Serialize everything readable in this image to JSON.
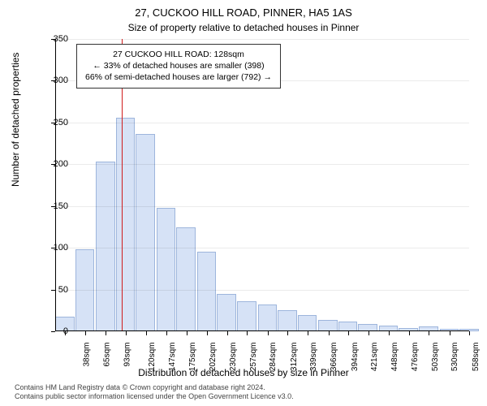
{
  "title_line1": "27, CUCKOO HILL ROAD, PINNER, HA5 1AS",
  "title_line2": "Size of property relative to detached houses in Pinner",
  "ylabel": "Number of detached properties",
  "xlabel": "Distribution of detached houses by size in Pinner",
  "annotation": {
    "line1": "27 CUCKOO HILL ROAD: 128sqm",
    "line2": "← 33% of detached houses are smaller (398)",
    "line3": "66% of semi-detached houses are larger (792) →"
  },
  "footer_line1": "Contains HM Land Registry data © Crown copyright and database right 2024.",
  "footer_line2": "Contains public sector information licensed under the Open Government Licence v3.0.",
  "chart": {
    "type": "histogram",
    "ylim": [
      0,
      350
    ],
    "ytick_step": 50,
    "yticks": [
      0,
      50,
      100,
      150,
      200,
      250,
      300,
      350
    ],
    "xlim_sqm": [
      38,
      598
    ],
    "xticks_sqm": [
      38,
      65,
      93,
      120,
      147,
      175,
      202,
      230,
      257,
      284,
      312,
      339,
      366,
      394,
      421,
      448,
      476,
      503,
      530,
      558,
      585
    ],
    "bar_fill": "#d6e2f6",
    "bar_border": "#9db5dc",
    "background_color": "#ffffff",
    "marker_color": "#d01c1c",
    "marker_sqm": 128,
    "label_fontsize": 12,
    "tick_fontsize": 11,
    "bars": [
      {
        "x_sqm": 38,
        "count": 18
      },
      {
        "x_sqm": 65,
        "count": 98
      },
      {
        "x_sqm": 93,
        "count": 203
      },
      {
        "x_sqm": 120,
        "count": 256
      },
      {
        "x_sqm": 147,
        "count": 236
      },
      {
        "x_sqm": 175,
        "count": 148
      },
      {
        "x_sqm": 202,
        "count": 124
      },
      {
        "x_sqm": 230,
        "count": 95
      },
      {
        "x_sqm": 257,
        "count": 45
      },
      {
        "x_sqm": 284,
        "count": 36
      },
      {
        "x_sqm": 312,
        "count": 32
      },
      {
        "x_sqm": 339,
        "count": 25
      },
      {
        "x_sqm": 366,
        "count": 19
      },
      {
        "x_sqm": 394,
        "count": 14
      },
      {
        "x_sqm": 421,
        "count": 12
      },
      {
        "x_sqm": 448,
        "count": 9
      },
      {
        "x_sqm": 476,
        "count": 7
      },
      {
        "x_sqm": 503,
        "count": 4
      },
      {
        "x_sqm": 530,
        "count": 6
      },
      {
        "x_sqm": 558,
        "count": 3
      },
      {
        "x_sqm": 585,
        "count": 3
      }
    ]
  }
}
